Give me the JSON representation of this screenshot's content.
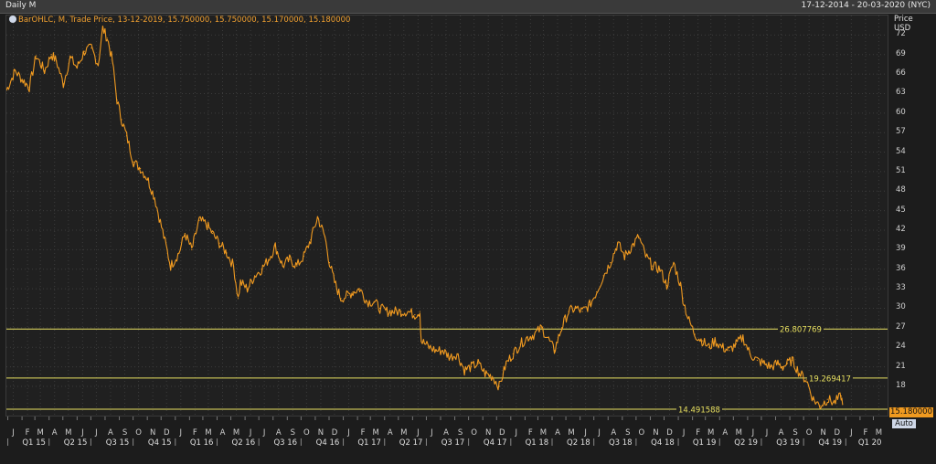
{
  "window": {
    "title": "Daily M",
    "date_range": "17-12-2014 - 20-03-2020 (NYC)"
  },
  "legend": {
    "text": "BarOHLC, M, Trade Price, 13-12-2019, 15.750000, 15.750000, 15.170000, 15.180000"
  },
  "axis": {
    "y_title_1": "Price",
    "y_title_2": "USD",
    "last_value": "15.180000",
    "auto_label": "Auto"
  },
  "colors": {
    "price": "#f09a20",
    "hline": "#e8e060",
    "background": "#202020",
    "grid": "#3c3c3c"
  },
  "chart_data": {
    "type": "line",
    "title": "",
    "xlabel": "",
    "ylabel": "Price USD",
    "x_range": [
      "2014-12-17",
      "2020-03-20"
    ],
    "ylim": [
      13.5,
      75
    ],
    "y_ticks": [
      18,
      21,
      24,
      27,
      30,
      33,
      36,
      39,
      42,
      45,
      48,
      51,
      54,
      57,
      60,
      63,
      66,
      69,
      72
    ],
    "grid": true,
    "month_ticks": [
      {
        "date": "2015-01-01",
        "label": "J"
      },
      {
        "date": "2015-02-01",
        "label": "F"
      },
      {
        "date": "2015-03-01",
        "label": "M"
      },
      {
        "date": "2015-04-01",
        "label": "A"
      },
      {
        "date": "2015-05-01",
        "label": "M"
      },
      {
        "date": "2015-06-01",
        "label": "J"
      },
      {
        "date": "2015-07-01",
        "label": "J"
      },
      {
        "date": "2015-08-01",
        "label": "A"
      },
      {
        "date": "2015-09-01",
        "label": "S"
      },
      {
        "date": "2015-10-01",
        "label": "O"
      },
      {
        "date": "2015-11-01",
        "label": "N"
      },
      {
        "date": "2015-12-01",
        "label": "D"
      },
      {
        "date": "2016-01-01",
        "label": "J"
      },
      {
        "date": "2016-02-01",
        "label": "F"
      },
      {
        "date": "2016-03-01",
        "label": "M"
      },
      {
        "date": "2016-04-01",
        "label": "A"
      },
      {
        "date": "2016-05-01",
        "label": "M"
      },
      {
        "date": "2016-06-01",
        "label": "J"
      },
      {
        "date": "2016-07-01",
        "label": "J"
      },
      {
        "date": "2016-08-01",
        "label": "A"
      },
      {
        "date": "2016-09-01",
        "label": "S"
      },
      {
        "date": "2016-10-01",
        "label": "O"
      },
      {
        "date": "2016-11-01",
        "label": "N"
      },
      {
        "date": "2016-12-01",
        "label": "D"
      },
      {
        "date": "2017-01-01",
        "label": "J"
      },
      {
        "date": "2017-02-01",
        "label": "F"
      },
      {
        "date": "2017-03-01",
        "label": "M"
      },
      {
        "date": "2017-04-01",
        "label": "A"
      },
      {
        "date": "2017-05-01",
        "label": "M"
      },
      {
        "date": "2017-06-01",
        "label": "J"
      },
      {
        "date": "2017-07-01",
        "label": "J"
      },
      {
        "date": "2017-08-01",
        "label": "A"
      },
      {
        "date": "2017-09-01",
        "label": "S"
      },
      {
        "date": "2017-10-01",
        "label": "O"
      },
      {
        "date": "2017-11-01",
        "label": "N"
      },
      {
        "date": "2017-12-01",
        "label": "D"
      },
      {
        "date": "2018-01-01",
        "label": "J"
      },
      {
        "date": "2018-02-01",
        "label": "F"
      },
      {
        "date": "2018-03-01",
        "label": "M"
      },
      {
        "date": "2018-04-01",
        "label": "A"
      },
      {
        "date": "2018-05-01",
        "label": "M"
      },
      {
        "date": "2018-06-01",
        "label": "J"
      },
      {
        "date": "2018-07-01",
        "label": "J"
      },
      {
        "date": "2018-08-01",
        "label": "A"
      },
      {
        "date": "2018-09-01",
        "label": "S"
      },
      {
        "date": "2018-10-01",
        "label": "O"
      },
      {
        "date": "2018-11-01",
        "label": "N"
      },
      {
        "date": "2018-12-01",
        "label": "D"
      },
      {
        "date": "2019-01-01",
        "label": "J"
      },
      {
        "date": "2019-02-01",
        "label": "F"
      },
      {
        "date": "2019-03-01",
        "label": "M"
      },
      {
        "date": "2019-04-01",
        "label": "A"
      },
      {
        "date": "2019-05-01",
        "label": "M"
      },
      {
        "date": "2019-06-01",
        "label": "J"
      },
      {
        "date": "2019-07-01",
        "label": "J"
      },
      {
        "date": "2019-08-01",
        "label": "A"
      },
      {
        "date": "2019-09-01",
        "label": "S"
      },
      {
        "date": "2019-10-01",
        "label": "O"
      },
      {
        "date": "2019-11-01",
        "label": "N"
      },
      {
        "date": "2019-12-01",
        "label": "D"
      },
      {
        "date": "2020-01-01",
        "label": "J"
      },
      {
        "date": "2020-02-01",
        "label": "F"
      },
      {
        "date": "2020-03-01",
        "label": "M"
      }
    ],
    "quarter_labels": [
      {
        "start": "2015-01-01",
        "end": "2015-04-01",
        "label": "Q1 15"
      },
      {
        "start": "2015-04-01",
        "end": "2015-07-01",
        "label": "Q2 15"
      },
      {
        "start": "2015-07-01",
        "end": "2015-10-01",
        "label": "Q3 15"
      },
      {
        "start": "2015-10-01",
        "end": "2016-01-01",
        "label": "Q4 15"
      },
      {
        "start": "2016-01-01",
        "end": "2016-04-01",
        "label": "Q1 16"
      },
      {
        "start": "2016-04-01",
        "end": "2016-07-01",
        "label": "Q2 16"
      },
      {
        "start": "2016-07-01",
        "end": "2016-10-01",
        "label": "Q3 16"
      },
      {
        "start": "2016-10-01",
        "end": "2017-01-01",
        "label": "Q4 16"
      },
      {
        "start": "2017-01-01",
        "end": "2017-04-01",
        "label": "Q1 17"
      },
      {
        "start": "2017-04-01",
        "end": "2017-07-01",
        "label": "Q2 17"
      },
      {
        "start": "2017-07-01",
        "end": "2017-10-01",
        "label": "Q3 17"
      },
      {
        "start": "2017-10-01",
        "end": "2018-01-01",
        "label": "Q4 17"
      },
      {
        "start": "2018-01-01",
        "end": "2018-04-01",
        "label": "Q1 18"
      },
      {
        "start": "2018-04-01",
        "end": "2018-07-01",
        "label": "Q2 18"
      },
      {
        "start": "2018-07-01",
        "end": "2018-10-01",
        "label": "Q3 18"
      },
      {
        "start": "2018-10-01",
        "end": "2019-01-01",
        "label": "Q4 18"
      },
      {
        "start": "2019-01-01",
        "end": "2019-04-01",
        "label": "Q1 19"
      },
      {
        "start": "2019-04-01",
        "end": "2019-07-01",
        "label": "Q2 19"
      },
      {
        "start": "2019-07-01",
        "end": "2019-10-01",
        "label": "Q3 19"
      },
      {
        "start": "2019-10-01",
        "end": "2020-01-01",
        "label": "Q4 19"
      },
      {
        "start": "2020-01-01",
        "end": "2020-04-01",
        "label": "Q1 20"
      }
    ],
    "horizontal_lines": [
      {
        "value": 26.807769,
        "label": "26.807769"
      },
      {
        "value": 19.269417,
        "label": "19.269417"
      },
      {
        "value": 14.491588,
        "label": "14.491588"
      }
    ],
    "series": [
      {
        "x": [
          "2014-12-17",
          "2015-01-05",
          "2015-01-20",
          "2015-02-05",
          "2015-02-20",
          "2015-03-10",
          "2015-03-25",
          "2015-04-05",
          "2015-04-20",
          "2015-05-05",
          "2015-05-20",
          "2015-06-05",
          "2015-06-20",
          "2015-07-05",
          "2015-07-15",
          "2015-07-25",
          "2015-08-05",
          "2015-08-15",
          "2015-08-25",
          "2015-09-05",
          "2015-09-20",
          "2015-10-05",
          "2015-10-20",
          "2015-11-05",
          "2015-11-25",
          "2015-12-10",
          "2015-12-28",
          "2016-01-10",
          "2016-01-25",
          "2016-02-10",
          "2016-02-25",
          "2016-03-10",
          "2016-03-25",
          "2016-04-10",
          "2016-04-25",
          "2016-05-05",
          "2016-05-10",
          "2016-05-25",
          "2016-06-10",
          "2016-06-25",
          "2016-07-10",
          "2016-07-25",
          "2016-08-10",
          "2016-08-25",
          "2016-09-10",
          "2016-09-25",
          "2016-10-10",
          "2016-10-25",
          "2016-11-10",
          "2016-11-20",
          "2016-12-01",
          "2016-12-15",
          "2016-12-30",
          "2017-01-10",
          "2017-01-25",
          "2017-02-10",
          "2017-02-25",
          "2017-03-10",
          "2017-03-25",
          "2017-04-10",
          "2017-04-25",
          "2017-05-10",
          "2017-05-25",
          "2017-06-05",
          "2017-06-08",
          "2017-06-25",
          "2017-07-10",
          "2017-07-25",
          "2017-08-10",
          "2017-08-25",
          "2017-09-10",
          "2017-09-25",
          "2017-10-10",
          "2017-10-25",
          "2017-11-10",
          "2017-11-25",
          "2017-12-10",
          "2017-12-25",
          "2018-01-10",
          "2018-01-25",
          "2018-02-10",
          "2018-02-25",
          "2018-03-10",
          "2018-03-25",
          "2018-04-10",
          "2018-04-25",
          "2018-05-10",
          "2018-05-25",
          "2018-06-10",
          "2018-06-25",
          "2018-07-10",
          "2018-07-25",
          "2018-08-10",
          "2018-08-25",
          "2018-09-10",
          "2018-09-25",
          "2018-10-10",
          "2018-10-25",
          "2018-11-10",
          "2018-11-25",
          "2018-12-10",
          "2018-12-25",
          "2018-12-30",
          "2019-01-10",
          "2019-01-25",
          "2019-02-10",
          "2019-02-25",
          "2019-03-10",
          "2019-03-25",
          "2019-04-10",
          "2019-04-25",
          "2019-05-10",
          "2019-05-25",
          "2019-06-10",
          "2019-06-25",
          "2019-07-10",
          "2019-07-25",
          "2019-08-05",
          "2019-08-15",
          "2019-08-25",
          "2019-09-10",
          "2019-09-25",
          "2019-10-10",
          "2019-10-25",
          "2019-11-10",
          "2019-11-25",
          "2019-12-10",
          "2019-12-13"
        ],
        "y": [
          63.5,
          66.5,
          65.2,
          64.0,
          68.8,
          66.5,
          69.0,
          68.0,
          64.5,
          68.5,
          67.0,
          69.5,
          70.0,
          67.5,
          73.0,
          71.5,
          68.0,
          62.0,
          59.0,
          56.5,
          52.5,
          51.5,
          50.0,
          47.0,
          41.0,
          36.5,
          38.5,
          41.5,
          39.0,
          43.5,
          43.0,
          41.5,
          40.0,
          38.5,
          36.5,
          31.5,
          34.0,
          33.0,
          35.0,
          36.0,
          37.5,
          39.5,
          36.5,
          37.5,
          36.5,
          38.0,
          40.5,
          44.0,
          41.0,
          37.0,
          34.0,
          31.5,
          32.0,
          32.5,
          33.0,
          31.0,
          31.0,
          30.0,
          29.5,
          29.5,
          29.5,
          29.5,
          29.0,
          29.5,
          25.0,
          24.0,
          23.5,
          23.5,
          22.5,
          23.0,
          20.5,
          21.0,
          21.5,
          20.0,
          19.5,
          18.0,
          21.5,
          23.0,
          24.5,
          25.5,
          26.0,
          27.0,
          25.5,
          23.5,
          27.0,
          29.5,
          30.0,
          29.5,
          30.5,
          32.5,
          35.0,
          37.0,
          40.0,
          38.0,
          39.5,
          41.0,
          38.0,
          36.5,
          36.0,
          33.5,
          37.0,
          33.5,
          31.5,
          28.5,
          26.0,
          25.0,
          24.0,
          25.0,
          24.0,
          23.5,
          24.5,
          25.5,
          23.0,
          22.0,
          21.5,
          21.0,
          21.5,
          21.0,
          21.5,
          22.0,
          20.0,
          19.0,
          16.0,
          15.0,
          16.0,
          15.5,
          16.5,
          15.2
        ]
      }
    ]
  }
}
